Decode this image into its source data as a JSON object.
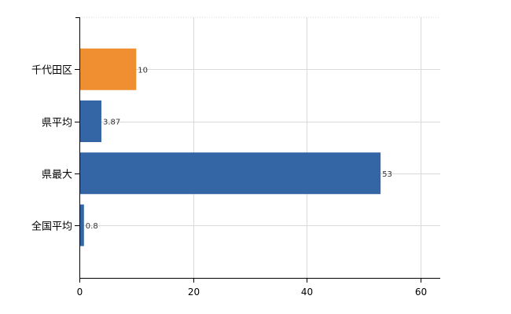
{
  "chart_data": {
    "type": "bar",
    "orientation": "horizontal",
    "categories": [
      "千代田区",
      "県平均",
      "県最大",
      "全国平均"
    ],
    "values": [
      10,
      3.87,
      53,
      0.8
    ],
    "value_labels": [
      "10",
      "3.87",
      "53",
      "0.8"
    ],
    "highlight_index": 0,
    "colors": {
      "default": "#3465a4",
      "highlight": "#ef8f32"
    },
    "xlim": [
      0,
      63.5
    ],
    "xticks": [
      0,
      20,
      40,
      60
    ],
    "xtick_labels": [
      "0",
      "20",
      "40",
      "60"
    ],
    "grid": true,
    "title": "",
    "xlabel": "",
    "ylabel": ""
  }
}
